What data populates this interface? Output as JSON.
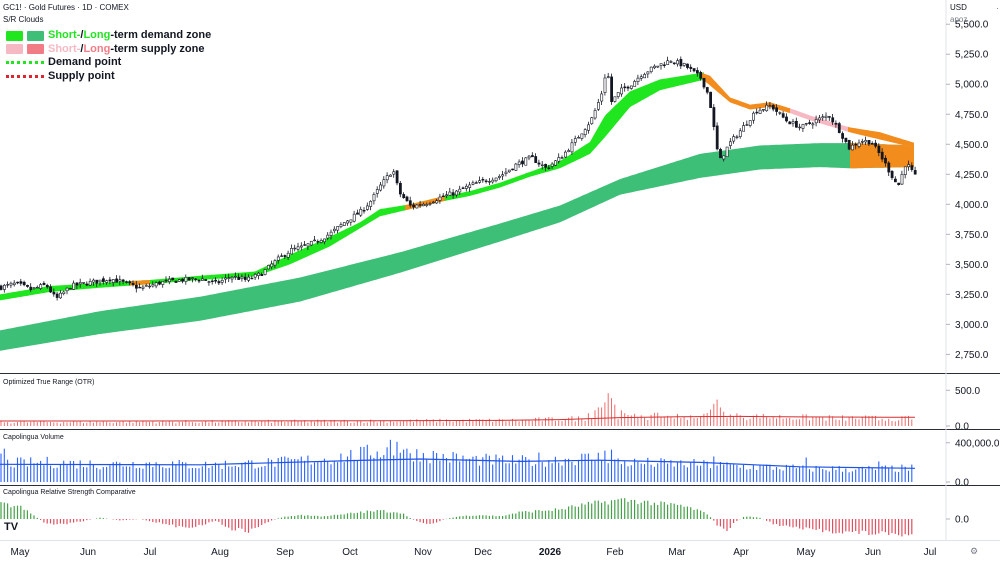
{
  "header": {
    "symbol_line": "GC1! · Gold Futures · 1D · COMEX",
    "study": "S/R Clouds",
    "currency": "USD",
    "right_tag": "apoz"
  },
  "legend": {
    "items": [
      {
        "icon": "demand-zone-swatches",
        "lead": "Short-",
        "sep": " / ",
        "lead2": "Long",
        "tail": "-term demand zone",
        "colors": [
          "#1fe61f",
          "#3dbf77"
        ],
        "text_color": "#1fe61f"
      },
      {
        "icon": "supply-zone-swatches",
        "lead": "Short-",
        "sep": " / ",
        "lead2": "Long",
        "tail": "-term supply zone",
        "colors": [
          "#f6b9c3",
          "#f27c86"
        ],
        "text_color": "#f6b9c3"
      },
      {
        "icon": "demand-point-line",
        "label": "Demand point",
        "color": "#1fe61f"
      },
      {
        "icon": "supply-point-line",
        "label": "Supply point",
        "color": "#e0242f"
      }
    ]
  },
  "panes": {
    "otr_title": "Optimized True Range (OTR)",
    "volume_title": "Capolingua Volume",
    "rsc_title": "Capolingua Relative Strength Comparative"
  },
  "chart_data": [
    {
      "type": "candlestick",
      "title": "GC1! · Gold Futures · 1D · COMEX",
      "y_axis_labels": [
        "5,500.0",
        "5,250.0",
        "5,000.0",
        "4,750.0",
        "4,500.0",
        "4,250.0",
        "4,000.0",
        "3,750.0",
        "3,500.0",
        "3,250.0",
        "3,000.0",
        "2,750.0"
      ],
      "y_ticks": [
        5500,
        5250,
        5000,
        4750,
        4500,
        4250,
        4000,
        3750,
        3500,
        3250,
        3000,
        2750
      ],
      "ylim": [
        2620,
        5660
      ],
      "x_axis_labels": [
        "May",
        "Jun",
        "Jul",
        "Aug",
        "Sep",
        "Oct",
        "Nov",
        "Dec",
        "2026",
        "Feb",
        "Mar",
        "Apr",
        "May",
        "Jun",
        "Jul"
      ],
      "x_label_x": [
        20,
        88,
        150,
        220,
        285,
        350,
        423,
        483,
        550,
        615,
        677,
        741,
        806,
        873,
        930
      ],
      "close_path": [
        [
          0,
          3310
        ],
        [
          15,
          3340
        ],
        [
          30,
          3290
        ],
        [
          45,
          3330
        ],
        [
          55,
          3210
        ],
        [
          70,
          3320
        ],
        [
          90,
          3350
        ],
        [
          110,
          3380
        ],
        [
          125,
          3340
        ],
        [
          140,
          3300
        ],
        [
          160,
          3350
        ],
        [
          180,
          3370
        ],
        [
          200,
          3380
        ],
        [
          215,
          3340
        ],
        [
          230,
          3400
        ],
        [
          245,
          3370
        ],
        [
          260,
          3420
        ],
        [
          275,
          3530
        ],
        [
          290,
          3620
        ],
        [
          300,
          3640
        ],
        [
          315,
          3690
        ],
        [
          330,
          3760
        ],
        [
          345,
          3860
        ],
        [
          360,
          3940
        ],
        [
          370,
          4030
        ],
        [
          380,
          4160
        ],
        [
          392,
          4290
        ],
        [
          398,
          4100
        ],
        [
          410,
          3980
        ],
        [
          425,
          4010
        ],
        [
          440,
          4060
        ],
        [
          455,
          4100
        ],
        [
          470,
          4160
        ],
        [
          485,
          4200
        ],
        [
          500,
          4240
        ],
        [
          515,
          4330
        ],
        [
          530,
          4390
        ],
        [
          545,
          4300
        ],
        [
          560,
          4390
        ],
        [
          575,
          4540
        ],
        [
          590,
          4700
        ],
        [
          600,
          4900
        ],
        [
          606,
          5150
        ],
        [
          610,
          4850
        ],
        [
          620,
          4950
        ],
        [
          630,
          5000
        ],
        [
          640,
          5080
        ],
        [
          655,
          5150
        ],
        [
          670,
          5200
        ],
        [
          685,
          5150
        ],
        [
          700,
          5050
        ],
        [
          708,
          4900
        ],
        [
          718,
          4350
        ],
        [
          728,
          4500
        ],
        [
          740,
          4620
        ],
        [
          755,
          4780
        ],
        [
          770,
          4820
        ],
        [
          785,
          4700
        ],
        [
          800,
          4640
        ],
        [
          815,
          4700
        ],
        [
          828,
          4740
        ],
        [
          838,
          4620
        ],
        [
          848,
          4470
        ],
        [
          860,
          4530
        ],
        [
          870,
          4520
        ],
        [
          880,
          4400
        ],
        [
          890,
          4250
        ],
        [
          897,
          4150
        ],
        [
          905,
          4350
        ],
        [
          915,
          4220
        ]
      ],
      "bars_x_range": [
        0,
        916
      ],
      "short_demand_band": [
        [
          0,
          3200,
          3250
        ],
        [
          50,
          3270,
          3320
        ],
        [
          100,
          3305,
          3345
        ],
        [
          150,
          3335,
          3370
        ],
        [
          200,
          3370,
          3405
        ],
        [
          255,
          3400,
          3440
        ],
        [
          290,
          3500,
          3580
        ],
        [
          330,
          3650,
          3730
        ],
        [
          360,
          3800,
          3850
        ],
        [
          380,
          3900,
          3960
        ],
        [
          410,
          3960,
          4000
        ],
        [
          440,
          4020,
          4060
        ],
        [
          470,
          4070,
          4110
        ],
        [
          500,
          4140,
          4180
        ],
        [
          530,
          4230,
          4270
        ],
        [
          560,
          4300,
          4360
        ],
        [
          590,
          4420,
          4520
        ],
        [
          605,
          4560,
          4740
        ],
        [
          630,
          4810,
          4940
        ],
        [
          660,
          4950,
          5040
        ],
        [
          690,
          5010,
          5080
        ],
        [
          705,
          5040,
          5100
        ]
      ],
      "short_demand_orange_segments": [
        [
          130,
          150
        ],
        [
          405,
          445
        ]
      ],
      "long_demand_band": [
        [
          0,
          2780,
          2950
        ],
        [
          100,
          2920,
          3110
        ],
        [
          200,
          3030,
          3230
        ],
        [
          300,
          3190,
          3390
        ],
        [
          400,
          3430,
          3600
        ],
        [
          500,
          3690,
          3840
        ],
        [
          560,
          3850,
          3990
        ],
        [
          620,
          4080,
          4210
        ],
        [
          700,
          4220,
          4420
        ],
        [
          760,
          4290,
          4490
        ],
        [
          820,
          4310,
          4510
        ],
        [
          850,
          4300,
          4510
        ],
        [
          915,
          4310,
          4490
        ]
      ],
      "long_demand_orange_segment": [
        850,
        915
      ],
      "short_supply_band": [
        [
          700,
          5060,
          5100
        ],
        [
          710,
          4990,
          5070
        ],
        [
          730,
          4850,
          4890
        ],
        [
          750,
          4790,
          4830
        ],
        [
          770,
          4810,
          4850
        ],
        [
          790,
          4760,
          4800
        ],
        [
          810,
          4700,
          4740
        ],
        [
          830,
          4650,
          4690
        ],
        [
          850,
          4600,
          4640
        ],
        [
          880,
          4540,
          4600
        ],
        [
          915,
          4470,
          4510
        ]
      ],
      "short_supply_orange_segments": [
        [
          700,
          790
        ],
        [
          848,
          915
        ]
      ]
    },
    {
      "type": "bar",
      "title": "Optimized True Range (OTR)",
      "y_axis_labels": [
        "500.0",
        "0.0"
      ],
      "y_ticks": [
        500,
        0
      ],
      "ylim": [
        0,
        700
      ],
      "bar_color": "#ef6c6c",
      "spikes": [
        [
          590,
          180
        ],
        [
          595,
          220
        ],
        [
          600,
          260
        ],
        [
          604,
          330
        ],
        [
          607,
          460
        ],
        [
          610,
          680
        ],
        [
          613,
          390
        ],
        [
          616,
          300
        ],
        [
          620,
          220
        ],
        [
          625,
          180
        ],
        [
          640,
          150
        ],
        [
          660,
          120
        ],
        [
          680,
          110
        ],
        [
          700,
          140
        ],
        [
          705,
          170
        ],
        [
          710,
          230
        ],
        [
          713,
          310
        ],
        [
          716,
          370
        ],
        [
          719,
          340
        ],
        [
          722,
          260
        ],
        [
          725,
          200
        ],
        [
          740,
          150
        ],
        [
          760,
          110
        ],
        [
          800,
          95
        ],
        [
          840,
          85
        ],
        [
          880,
          80
        ],
        [
          900,
          80
        ]
      ],
      "base_level": [
        [
          0,
          55
        ],
        [
          200,
          60
        ],
        [
          380,
          70
        ],
        [
          520,
          80
        ],
        [
          590,
          110
        ],
        [
          640,
          130
        ],
        [
          700,
          140
        ],
        [
          760,
          130
        ],
        [
          840,
          110
        ],
        [
          915,
          105
        ]
      ],
      "average_line": [
        [
          0,
          70
        ],
        [
          300,
          72
        ],
        [
          500,
          78
        ],
        [
          560,
          90
        ],
        [
          620,
          118
        ],
        [
          680,
          130
        ],
        [
          740,
          135
        ],
        [
          800,
          128
        ],
        [
          860,
          125
        ],
        [
          915,
          122
        ]
      ]
    },
    {
      "type": "bar",
      "title": "Capolingua Volume",
      "y_axis_labels": [
        "400,000.0",
        "0.0"
      ],
      "y_ticks": [
        400000,
        0
      ],
      "ylim": [
        0,
        520000
      ],
      "bar_color": "#2962ff",
      "level": [
        [
          0,
          190000
        ],
        [
          50,
          200000
        ],
        [
          100,
          180000
        ],
        [
          150,
          190000
        ],
        [
          200,
          170000
        ],
        [
          280,
          200000
        ],
        [
          330,
          240000
        ],
        [
          360,
          280000
        ],
        [
          380,
          320000
        ],
        [
          400,
          330000
        ],
        [
          420,
          280000
        ],
        [
          470,
          230000
        ],
        [
          520,
          210000
        ],
        [
          560,
          230000
        ],
        [
          600,
          250000
        ],
        [
          620,
          200000
        ],
        [
          660,
          190000
        ],
        [
          700,
          180000
        ],
        [
          740,
          160000
        ],
        [
          800,
          140000
        ],
        [
          860,
          130000
        ],
        [
          915,
          140000
        ]
      ],
      "spikes": [
        [
          0,
          290000
        ],
        [
          5,
          340000
        ],
        [
          390,
          430000
        ],
        [
          396,
          410000
        ],
        [
          408,
          340000
        ],
        [
          540,
          300000
        ],
        [
          604,
          320000
        ],
        [
          610,
          330000
        ],
        [
          715,
          260000
        ],
        [
          806,
          250000
        ],
        [
          880,
          210000
        ]
      ],
      "average_line": [
        [
          0,
          180000
        ],
        [
          200,
          175000
        ],
        [
          360,
          220000
        ],
        [
          420,
          235000
        ],
        [
          520,
          210000
        ],
        [
          600,
          222000
        ],
        [
          700,
          200000
        ],
        [
          800,
          155000
        ],
        [
          915,
          140000
        ]
      ]
    },
    {
      "type": "bar",
      "title": "Capolingua Relative Strength Comparative",
      "y_axis_labels": [
        "0.0"
      ],
      "y_ticks": [
        0
      ],
      "ylim": [
        -1,
        1
      ],
      "positive_color": "#43a047",
      "negative_color": "#e04f5f",
      "profile": [
        [
          0,
          0.55
        ],
        [
          20,
          0.45
        ],
        [
          35,
          0.1
        ],
        [
          45,
          -0.15
        ],
        [
          60,
          -0.2
        ],
        [
          80,
          -0.1
        ],
        [
          100,
          0.05
        ],
        [
          120,
          -0.05
        ],
        [
          140,
          0.0
        ],
        [
          160,
          -0.15
        ],
        [
          180,
          -0.3
        ],
        [
          200,
          -0.25
        ],
        [
          215,
          -0.05
        ],
        [
          230,
          -0.35
        ],
        [
          250,
          -0.45
        ],
        [
          265,
          -0.15
        ],
        [
          280,
          0.05
        ],
        [
          300,
          0.15
        ],
        [
          320,
          0.1
        ],
        [
          340,
          0.15
        ],
        [
          360,
          0.25
        ],
        [
          380,
          0.3
        ],
        [
          400,
          0.25
        ],
        [
          415,
          -0.05
        ],
        [
          430,
          -0.2
        ],
        [
          445,
          0.0
        ],
        [
          460,
          0.1
        ],
        [
          480,
          0.15
        ],
        [
          500,
          0.1
        ],
        [
          520,
          0.25
        ],
        [
          540,
          0.3
        ],
        [
          560,
          0.35
        ],
        [
          580,
          0.5
        ],
        [
          600,
          0.6
        ],
        [
          620,
          0.7
        ],
        [
          640,
          0.65
        ],
        [
          660,
          0.55
        ],
        [
          680,
          0.5
        ],
        [
          700,
          0.3
        ],
        [
          710,
          0.1
        ],
        [
          718,
          -0.25
        ],
        [
          726,
          -0.45
        ],
        [
          734,
          -0.15
        ],
        [
          745,
          0.1
        ],
        [
          760,
          0.05
        ],
        [
          775,
          -0.2
        ],
        [
          800,
          -0.35
        ],
        [
          830,
          -0.45
        ],
        [
          860,
          -0.5
        ],
        [
          890,
          -0.55
        ],
        [
          915,
          -0.6
        ]
      ]
    }
  ]
}
